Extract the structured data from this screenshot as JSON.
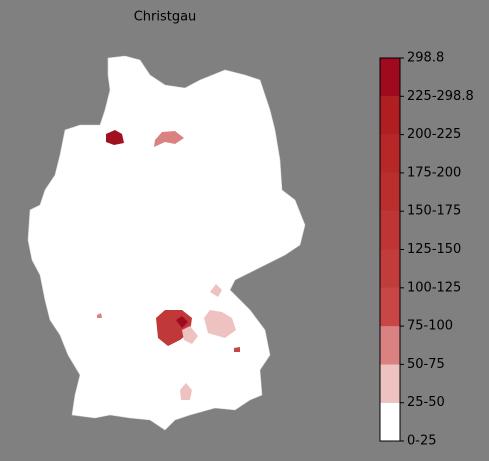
{
  "title": "Christgau",
  "colorbar": {
    "labels": [
      "0-25",
      "25-50",
      "50-75",
      "75-100",
      "100-125",
      "125-150",
      "150-175",
      "175-200",
      "200-225",
      "225-298.8",
      "298.8"
    ],
    "colors": [
      "#ffffff",
      "#efc2c2",
      "#da8282",
      "#c84646",
      "#c33c3c",
      "#bf3535",
      "#bb2e2e",
      "#b72727",
      "#b11e22",
      "#9f0a1e"
    ]
  }
}
